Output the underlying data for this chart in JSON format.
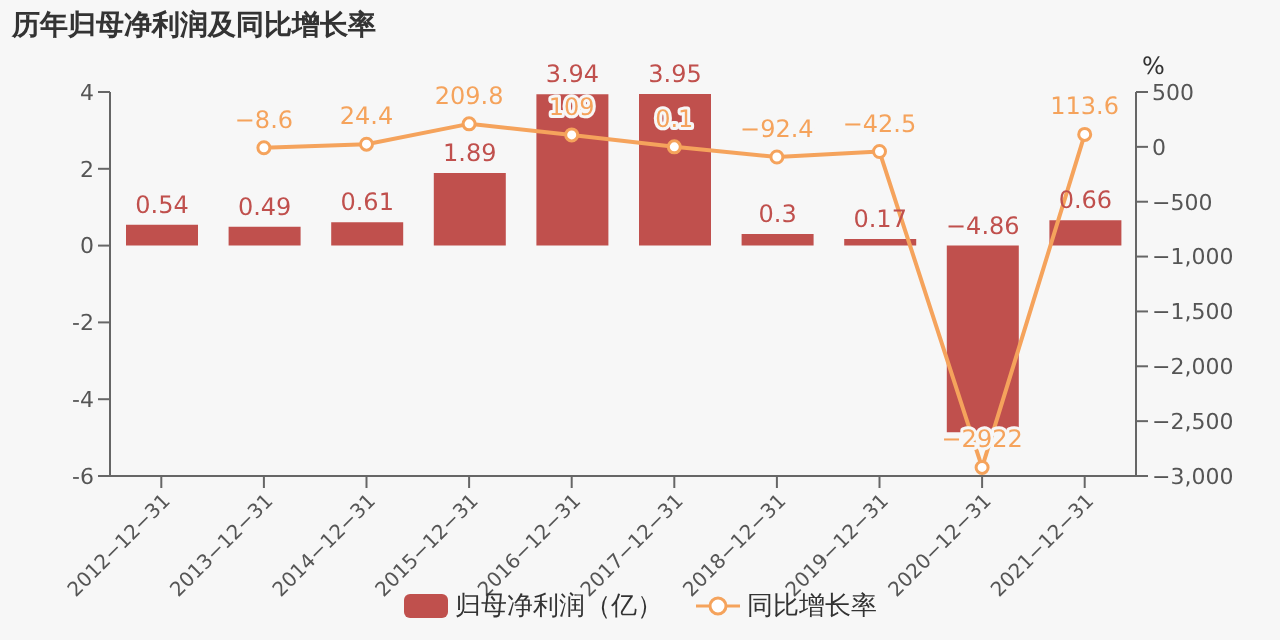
{
  "chart_data": {
    "type": "bar",
    "title": "历年归母净利润及同比增长率",
    "y2label": "%",
    "categories": [
      "2012−12−31",
      "2013−12−31",
      "2014−12−31",
      "2015−12−31",
      "2016−12−31",
      "2017−12−31",
      "2018−12−31",
      "2019−12−31",
      "2020−12−31",
      "2021−12−31"
    ],
    "series": [
      {
        "name": "归母净利润（亿）",
        "color": "#c0504d",
        "values": [
          0.54,
          0.49,
          0.61,
          1.89,
          3.94,
          3.95,
          0.3,
          0.17,
          -4.86,
          0.66
        ],
        "value_labels": [
          "0.54",
          "0.49",
          "0.61",
          "1.89",
          "3.94",
          "3.95",
          "0.3",
          "0.17",
          "−4.86",
          "0.66"
        ]
      },
      {
        "name": "同比增长率",
        "type": "line",
        "axis": "y2",
        "color": "#f5a35c",
        "values": [
          null,
          -8.6,
          24.4,
          209.8,
          109,
          0.1,
          -92.4,
          -42.5,
          -2922,
          113.6
        ],
        "value_labels": [
          null,
          "−8.6",
          "24.4",
          "209.8",
          "109",
          "0.1",
          "−92.4",
          "−42.5",
          "−2922",
          "113.6"
        ]
      }
    ],
    "ylim": [
      -6,
      4
    ],
    "yticks": [
      {
        "value": -6,
        "label": "-6"
      },
      {
        "value": -4,
        "label": "-4"
      },
      {
        "value": -2,
        "label": "-2"
      },
      0,
      2,
      4
    ],
    "y2lim": [
      -3000,
      500
    ],
    "y2ticks": [
      {
        "value": -3000,
        "label": "−3,000"
      },
      {
        "value": -2500,
        "label": "−2,500"
      },
      {
        "value": -2000,
        "label": "−2,000"
      },
      {
        "value": -1500,
        "label": "−1,500"
      },
      {
        "value": -1000,
        "label": "−1,000"
      },
      {
        "value": -500,
        "label": "−500"
      },
      0,
      500
    ],
    "legend": "bottom",
    "marker": "circle",
    "grid": false
  }
}
